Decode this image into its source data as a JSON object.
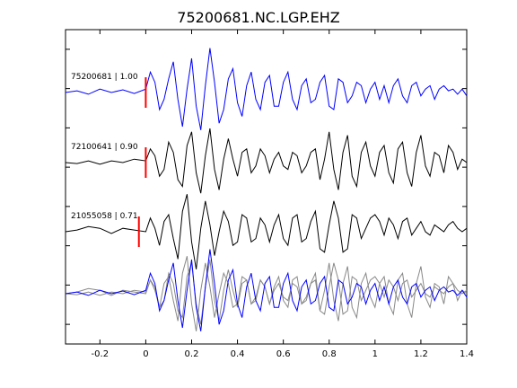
{
  "chart_data": {
    "type": "line",
    "title": "75200681.NC.LGP.EHZ",
    "xlabel": "",
    "ylabel": "",
    "xlim": [
      -0.35,
      1.4
    ],
    "x_ticks": [
      -0.2,
      0,
      0.2,
      0.4,
      0.6,
      0.8,
      1,
      1.2,
      1.4
    ],
    "x_tick_labels": [
      "-0.2",
      "0",
      "0.2",
      "0.4",
      "0.6",
      "0.8",
      "1",
      "1.2",
      "1.4"
    ],
    "y_ticks_count": 8,
    "grid": false,
    "colors": {
      "master": "#0000ff",
      "other": "#000000",
      "overlay_other": "#888888",
      "pick": "#ff0000"
    },
    "traces": [
      {
        "label": "75200681 | 1.00",
        "color": "#0000ff",
        "pick_x": 0.0,
        "x": [
          -0.35,
          -0.3,
          -0.25,
          -0.2,
          -0.15,
          -0.1,
          -0.05,
          0,
          0.02,
          0.04,
          0.06,
          0.08,
          0.1,
          0.12,
          0.14,
          0.16,
          0.18,
          0.2,
          0.22,
          0.24,
          0.26,
          0.28,
          0.3,
          0.32,
          0.34,
          0.36,
          0.38,
          0.4,
          0.42,
          0.44,
          0.46,
          0.48,
          0.5,
          0.52,
          0.54,
          0.56,
          0.58,
          0.6,
          0.62,
          0.64,
          0.66,
          0.68,
          0.7,
          0.72,
          0.74,
          0.76,
          0.78,
          0.8,
          0.82,
          0.84,
          0.86,
          0.88,
          0.9,
          0.92,
          0.94,
          0.96,
          0.98,
          1,
          1.02,
          1.04,
          1.06,
          1.08,
          1.1,
          1.12,
          1.14,
          1.16,
          1.18,
          1.2,
          1.22,
          1.24,
          1.26,
          1.28,
          1.3,
          1.32,
          1.34,
          1.36,
          1.38,
          1.4
        ],
        "y": [
          0,
          0.05,
          -0.05,
          0.1,
          0,
          0.08,
          -0.03,
          0.1,
          0.6,
          0.3,
          -0.5,
          -0.2,
          0.4,
          0.9,
          -0.2,
          -1.0,
          0.1,
          1.0,
          -0.4,
          -1.1,
          0.2,
          1.3,
          0.3,
          -0.9,
          -0.5,
          0.4,
          0.7,
          -0.3,
          -0.7,
          0.2,
          0.6,
          -0.2,
          -0.5,
          0.3,
          0.5,
          -0.4,
          -0.4,
          0.3,
          0.6,
          -0.2,
          -0.5,
          0.2,
          0.4,
          -0.3,
          -0.2,
          0.3,
          0.5,
          -0.4,
          -0.5,
          0.4,
          0.3,
          -0.3,
          -0.1,
          0.3,
          0.2,
          -0.3,
          0.1,
          0.3,
          -0.2,
          0.2,
          -0.3,
          0.2,
          0.4,
          -0.1,
          -0.3,
          0.2,
          0.3,
          -0.1,
          0.1,
          0.2,
          -0.2,
          0.1,
          0.2,
          0.05,
          0.1,
          -0.05,
          0.1,
          -0.1
        ]
      },
      {
        "label": "72100641 | 0.90",
        "color": "#000000",
        "pick_x": 0.0,
        "x": [
          -0.35,
          -0.3,
          -0.25,
          -0.2,
          -0.15,
          -0.1,
          -0.05,
          0,
          0.02,
          0.04,
          0.06,
          0.08,
          0.1,
          0.12,
          0.14,
          0.16,
          0.18,
          0.2,
          0.22,
          0.24,
          0.26,
          0.28,
          0.3,
          0.32,
          0.34,
          0.36,
          0.38,
          0.4,
          0.42,
          0.44,
          0.46,
          0.48,
          0.5,
          0.52,
          0.54,
          0.56,
          0.58,
          0.6,
          0.62,
          0.64,
          0.66,
          0.68,
          0.7,
          0.72,
          0.74,
          0.76,
          0.78,
          0.8,
          0.82,
          0.84,
          0.86,
          0.88,
          0.9,
          0.92,
          0.94,
          0.96,
          0.98,
          1,
          1.02,
          1.04,
          1.06,
          1.08,
          1.1,
          1.12,
          1.14,
          1.16,
          1.18,
          1.2,
          1.22,
          1.24,
          1.26,
          1.28,
          1.3,
          1.32,
          1.34,
          1.36,
          1.38,
          1.4
        ],
        "y": [
          0,
          -0.03,
          0.05,
          -0.05,
          0.05,
          0,
          0.1,
          0.05,
          0.4,
          0.2,
          -0.4,
          -0.2,
          0.6,
          0.3,
          -0.5,
          -0.7,
          0.5,
          0.9,
          -0.3,
          -0.9,
          0.2,
          1.0,
          -0.2,
          -0.8,
          0.1,
          0.7,
          0.1,
          -0.4,
          0.3,
          0.4,
          -0.3,
          -0.1,
          0.4,
          0.2,
          -0.3,
          0.1,
          0.3,
          -0.1,
          -0.2,
          0.3,
          0.2,
          -0.3,
          -0.1,
          0.3,
          0.4,
          -0.5,
          0.1,
          0.9,
          -0.2,
          -0.8,
          0.3,
          0.8,
          -0.4,
          -0.7,
          0.3,
          0.6,
          -0.1,
          -0.4,
          0.3,
          0.5,
          -0.3,
          -0.6,
          0.4,
          0.6,
          -0.3,
          -0.7,
          0.3,
          0.8,
          -0.1,
          -0.4,
          0.3,
          0.2,
          -0.3,
          0.5,
          0.3,
          -0.2,
          0.1,
          0.0
        ]
      },
      {
        "label": "21055058 | 0.71",
        "color": "#000000",
        "pick_x": -0.03,
        "x": [
          -0.35,
          -0.3,
          -0.25,
          -0.2,
          -0.15,
          -0.1,
          -0.05,
          0,
          0.02,
          0.04,
          0.06,
          0.08,
          0.1,
          0.12,
          0.14,
          0.16,
          0.18,
          0.2,
          0.22,
          0.24,
          0.26,
          0.28,
          0.3,
          0.32,
          0.34,
          0.36,
          0.38,
          0.4,
          0.42,
          0.44,
          0.46,
          0.48,
          0.5,
          0.52,
          0.54,
          0.56,
          0.58,
          0.6,
          0.62,
          0.64,
          0.66,
          0.68,
          0.7,
          0.72,
          0.74,
          0.76,
          0.78,
          0.8,
          0.82,
          0.84,
          0.86,
          0.88,
          0.9,
          0.92,
          0.94,
          0.96,
          0.98,
          1,
          1.02,
          1.04,
          1.06,
          1.08,
          1.1,
          1.12,
          1.14,
          1.16,
          1.18,
          1.2,
          1.22,
          1.24,
          1.26,
          1.28,
          1.3,
          1.32,
          1.34,
          1.36,
          1.38,
          1.4
        ],
        "y": [
          0,
          0.05,
          0.15,
          0.1,
          -0.05,
          0.1,
          0.05,
          0.0,
          0.4,
          0.1,
          -0.4,
          0.3,
          0.5,
          -0.2,
          -0.8,
          0.6,
          1.1,
          -0.3,
          -1.1,
          0.1,
          0.9,
          0.2,
          -0.7,
          0.0,
          0.6,
          0.3,
          -0.4,
          -0.3,
          0.5,
          0.4,
          -0.3,
          -0.2,
          0.4,
          0.2,
          -0.3,
          0.2,
          0.5,
          -0.2,
          -0.4,
          0.4,
          0.5,
          -0.3,
          -0.2,
          0.3,
          0.6,
          -0.5,
          -0.6,
          0.2,
          0.9,
          0.4,
          -0.6,
          -0.5,
          0.5,
          0.4,
          -0.2,
          0.1,
          0.4,
          0.5,
          0.3,
          -0.1,
          0.4,
          0.2,
          -0.2,
          0.3,
          0.4,
          -0.1,
          0.1,
          0.3,
          0.0,
          -0.1,
          0.2,
          0.1,
          0.0,
          0.2,
          0.3,
          0.1,
          0.0,
          0.1
        ]
      }
    ],
    "overlay": {
      "series_colors": [
        "#888888",
        "#888888",
        "#0000ff"
      ]
    }
  }
}
